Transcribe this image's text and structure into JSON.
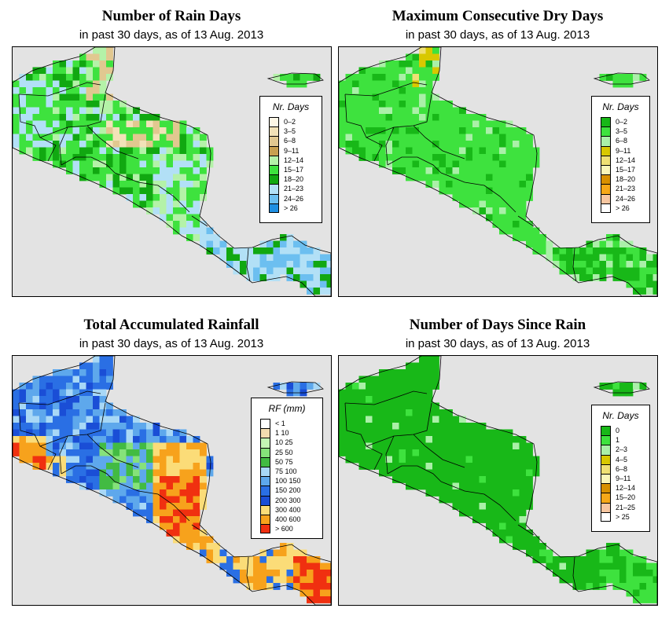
{
  "panels": [
    {
      "id": "rain_days",
      "title": "Number of Rain Days",
      "subtitle": "in past 30 days, as of  13 Aug. 2013",
      "legend": {
        "title": "Nr. Days",
        "items": [
          {
            "label": "0–2",
            "color": "#fdf7e6"
          },
          {
            "label": "3–5",
            "color": "#f2e2b8"
          },
          {
            "label": "6–8",
            "color": "#e1c890"
          },
          {
            "label": "9–11",
            "color": "#c8a050"
          },
          {
            "label": "12–14",
            "color": "#b4f2a8"
          },
          {
            "label": "15–17",
            "color": "#3ee23e"
          },
          {
            "label": "18–20",
            "color": "#11a811"
          },
          {
            "label": "21–23",
            "color": "#b2e0f6"
          },
          {
            "label": "24–26",
            "color": "#6cbff0"
          },
          {
            "label": "> 26",
            "color": "#1f8fe2"
          }
        ]
      }
    },
    {
      "id": "max_dry_days",
      "title": "Maximum Consecutive Dry Days",
      "subtitle": "in past 30 days, as of  13 Aug. 2013",
      "legend": {
        "title": "Nr. Days",
        "items": [
          {
            "label": "0–2",
            "color": "#18b818"
          },
          {
            "label": "3–5",
            "color": "#3ee23e"
          },
          {
            "label": "6–8",
            "color": "#aaf0a8"
          },
          {
            "label": "9–11",
            "color": "#d8c800"
          },
          {
            "label": "12–14",
            "color": "#efe074"
          },
          {
            "label": "15–17",
            "color": "#faf6b8"
          },
          {
            "label": "18–20",
            "color": "#d89000"
          },
          {
            "label": "21–23",
            "color": "#f6a818"
          },
          {
            "label": "24–26",
            "color": "#f7c6a0"
          },
          {
            "label": "> 26",
            "color": "#ffffff"
          }
        ]
      }
    },
    {
      "id": "total_rainfall",
      "title": "Total Accumulated Rainfall",
      "subtitle": "in past 30 days, as of  13 Aug. 2013",
      "legend": {
        "title": "RF (mm)",
        "items": [
          {
            "label": "< 1",
            "color": "#ffffff"
          },
          {
            "label": "1   10",
            "color": "#f2dcb0"
          },
          {
            "label": "10   25",
            "color": "#c4f6b4"
          },
          {
            "label": "25   50",
            "color": "#86e27a"
          },
          {
            "label": "50   75",
            "color": "#42bb42"
          },
          {
            "label": "75   100",
            "color": "#a8d8f6"
          },
          {
            "label": "100   150",
            "color": "#5ea8ec"
          },
          {
            "label": "150   200",
            "color": "#2a6fe4"
          },
          {
            "label": "200   300",
            "color": "#1a4ed6"
          },
          {
            "label": "300   400",
            "color": "#fbdc78"
          },
          {
            "label": "400   600",
            "color": "#f7a21c"
          },
          {
            "label": "> 600",
            "color": "#f03010"
          }
        ]
      }
    },
    {
      "id": "days_since_rain",
      "title": "Number of Days Since Rain",
      "subtitle": "in past 30 days, as of  13 Aug. 2013",
      "legend": {
        "title": "Nr. Days",
        "items": [
          {
            "label": "0",
            "color": "#18b818"
          },
          {
            "label": "1",
            "color": "#3ee23e"
          },
          {
            "label": "2–3",
            "color": "#aaf0a8"
          },
          {
            "label": "4–5",
            "color": "#d8c800"
          },
          {
            "label": "6–8",
            "color": "#efe074"
          },
          {
            "label": "9–11",
            "color": "#faf6b8"
          },
          {
            "label": "12–14",
            "color": "#d89000"
          },
          {
            "label": "15–20",
            "color": "#f6a818"
          },
          {
            "label": "21–25",
            "color": "#f7c6a0"
          },
          {
            "label": "> 25",
            "color": "#ffffff"
          }
        ]
      }
    }
  ]
}
